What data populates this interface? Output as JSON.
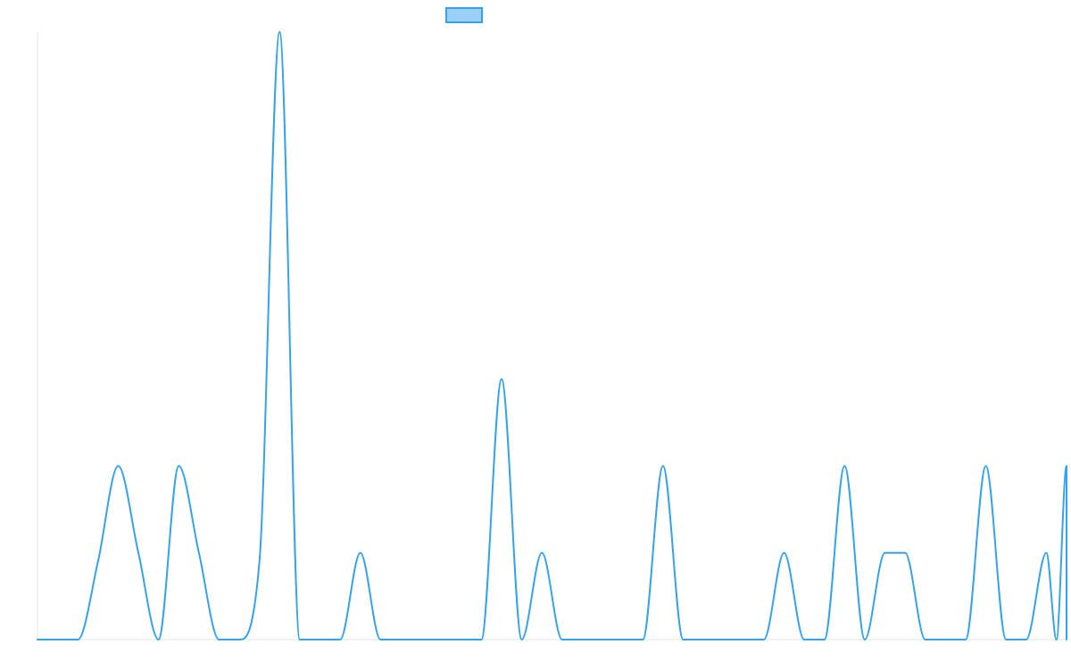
{
  "colors": {
    "series_line": "#36a2eb",
    "series_fill": "#9ad0f5",
    "axis": "#e3e3e3",
    "background": "#ffffff"
  },
  "chart_data": {
    "type": "line",
    "title": "",
    "xlabel": "",
    "ylabel": "",
    "legend": {
      "position": "top-center",
      "entries": [
        {
          "label": ""
        }
      ]
    },
    "grid": false,
    "x_range": [
      0,
      51
    ],
    "ylim": [
      0,
      7
    ],
    "series": [
      {
        "values": [
          0,
          0,
          0,
          0.9,
          2,
          1,
          0,
          2,
          1,
          0,
          0,
          0.9,
          7,
          0,
          0,
          0,
          1,
          0,
          0,
          0,
          0,
          0,
          0,
          3,
          0,
          1,
          0,
          0,
          0,
          0,
          0,
          2,
          0,
          0,
          0,
          0,
          0,
          1,
          0,
          0,
          2,
          0,
          1,
          1,
          0,
          0,
          0,
          2,
          0,
          0,
          1,
          0,
          2,
          0
        ],
        "x": [
          0,
          1,
          2,
          3,
          4,
          5,
          6,
          7,
          8,
          9,
          10,
          11,
          12,
          13,
          14,
          15,
          16,
          17,
          18,
          19,
          20,
          21,
          22,
          23,
          24,
          25,
          26,
          27,
          28,
          29,
          30,
          31,
          32,
          33,
          34,
          35,
          36,
          37,
          38,
          39,
          40,
          41,
          42,
          43,
          44,
          45,
          46,
          47,
          48,
          49,
          50,
          50.5,
          51,
          51
        ]
      }
    ]
  }
}
